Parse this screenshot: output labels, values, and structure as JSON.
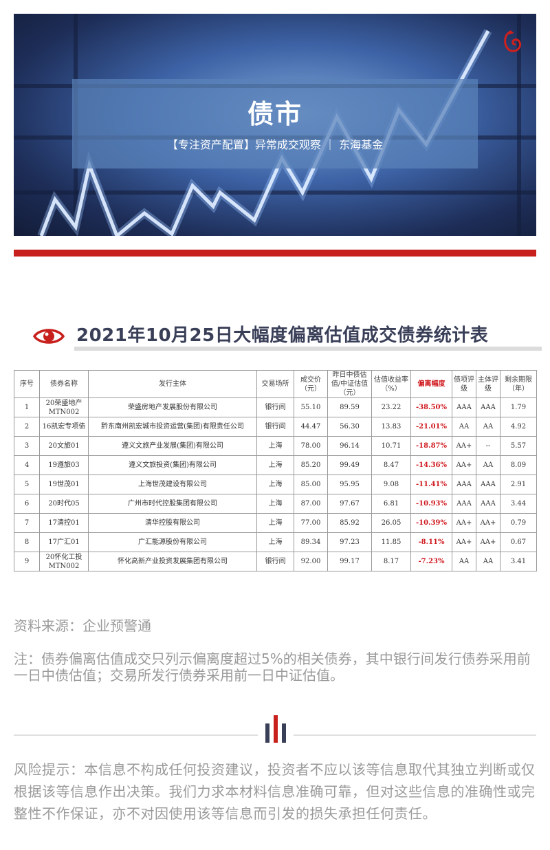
{
  "banner": {
    "title": "债市",
    "subtitle": "【专注资产配置】异常成交观察 ｜ 东海基金",
    "logo_icon": "dragon-logo-icon",
    "accent_color": "#c8201c"
  },
  "section": {
    "icon": "eye-icon",
    "title": "2021年10月25日大幅度偏离估值成交债券统计表"
  },
  "table": {
    "headers": [
      "序号",
      "债券名称",
      "发行主体",
      "交易场所",
      "成交价（元）",
      "昨日中债估值/中证估值（元）",
      "估值收益率（%）",
      "偏离幅度",
      "债项评级",
      "主体评级",
      "剩余期限（年）"
    ],
    "rows": [
      [
        "1",
        "20荣盛地产MTN002",
        "荣盛房地产发展股份有限公司",
        "银行间",
        "55.10",
        "89.59",
        "23.22",
        "-38.50%",
        "AAA",
        "AAA",
        "1.79"
      ],
      [
        "2",
        "16凯宏专项债",
        "黔东南州凯宏城市投资运营(集团)有限责任公司",
        "银行间",
        "44.47",
        "56.30",
        "13.83",
        "-21.01%",
        "AA",
        "AA",
        "4.92"
      ],
      [
        "3",
        "20文旅01",
        "遵义文旅产业发展(集团)有限公司",
        "上海",
        "78.00",
        "96.14",
        "10.71",
        "-18.87%",
        "AA+",
        "--",
        "5.57"
      ],
      [
        "4",
        "19遵旅03",
        "遵义文旅投资(集团)有限公司",
        "上海",
        "85.20",
        "99.49",
        "8.47",
        "-14.36%",
        "AA+",
        "AA",
        "8.09"
      ],
      [
        "5",
        "19世茂01",
        "上海世茂建设有限公司",
        "上海",
        "85.00",
        "95.95",
        "9.08",
        "-11.41%",
        "AAA",
        "AAA",
        "2.91"
      ],
      [
        "6",
        "20时代05",
        "广州市时代控股集团有限公司",
        "上海",
        "87.00",
        "97.67",
        "6.81",
        "-10.93%",
        "AAA",
        "AAA",
        "3.44"
      ],
      [
        "7",
        "17清控01",
        "清华控股有限公司",
        "上海",
        "77.00",
        "85.92",
        "26.05",
        "-10.39%",
        "AA+",
        "AA+",
        "0.79"
      ],
      [
        "8",
        "17广汇01",
        "广汇能源股份有限公司",
        "上海",
        "89.34",
        "97.23",
        "11.85",
        "-8.11%",
        "AA+",
        "AA+",
        "0.67"
      ],
      [
        "9",
        "20怀化工投MTN002",
        "怀化高新产业投资发展集团有限公司",
        "银行间",
        "92.00",
        "99.17",
        "8.17",
        "-7.23%",
        "AA",
        "AA",
        "3.41"
      ]
    ]
  },
  "notes": {
    "source": "资料来源：企业预警通",
    "remark": "注：债券偏离估值成交只列示偏离度超过5%的相关债券，其中银行间发行债券采用前一日中债估值；交易所发行债券采用前一日中证估值。"
  },
  "divider_icon": "bar-chart-divider-icon",
  "risk": "风险提示：本信息不构成任何投资建议，投资者不应以该等信息取代其独立判断或仅根据该等信息作出决策。我们力求本材料信息准确可靠，但对这些信息的准确性或完整性不作保证，亦不对因使用该等信息而引发的损失承担任何责任。"
}
